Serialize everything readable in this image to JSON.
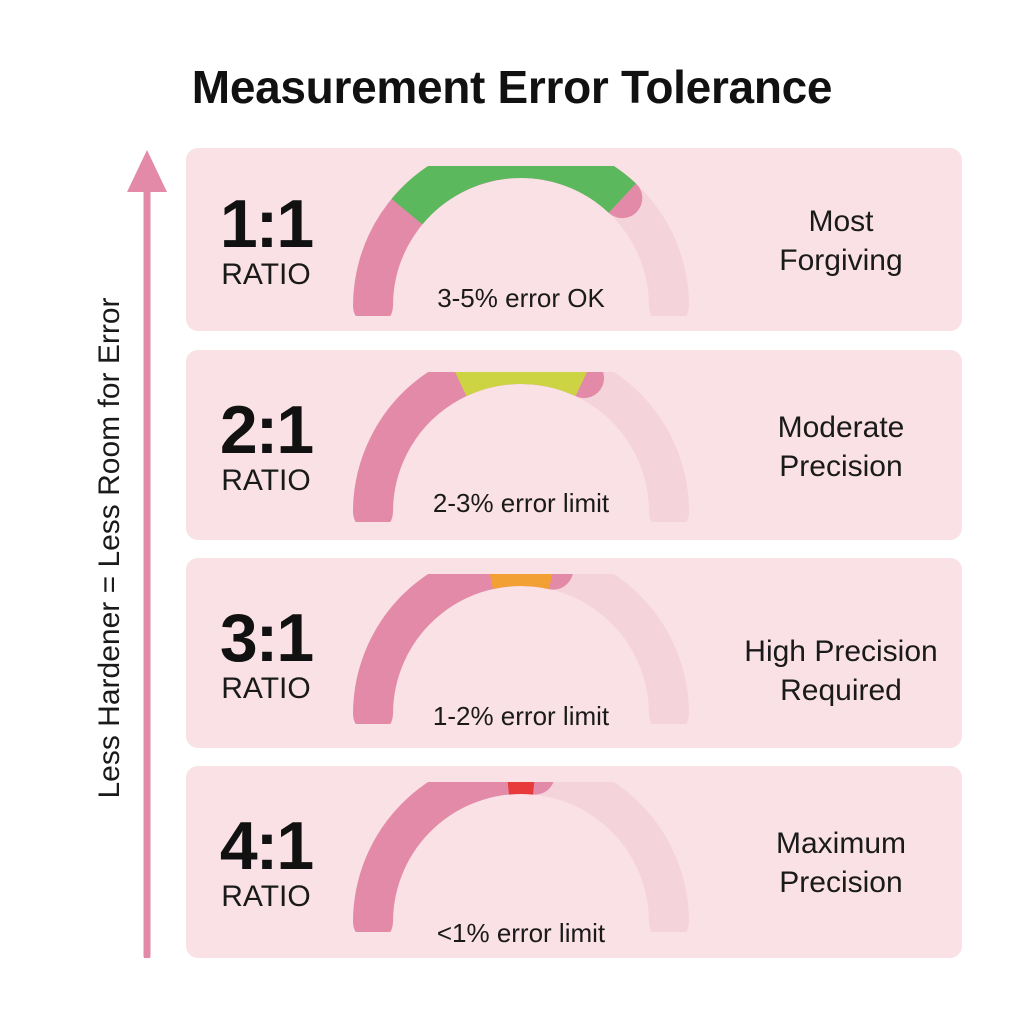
{
  "title": "Measurement Error Tolerance",
  "axis_label": "Less Hardener = Less Room for Error",
  "colors": {
    "card_bg": "#f9e1e5",
    "gauge_used": "#e38aa8",
    "gauge_remaining": "#f4d3da",
    "arrow": "#e38aa8"
  },
  "rows": [
    {
      "ratio": "1:1",
      "ratio_word": "RATIO",
      "tolerance_label": "3-5% error OK",
      "description_line1": "Most",
      "description_line2": "Forgiving",
      "zone_color": "#5cb85c",
      "zone_start_fraction": 0.22,
      "zone_end_fraction": 0.74
    },
    {
      "ratio": "2:1",
      "ratio_word": "RATIO",
      "tolerance_label": "2-3% error limit",
      "description_line1": "Moderate",
      "description_line2": "Precision",
      "zone_color": "#cdd444",
      "zone_start_fraction": 0.36,
      "zone_end_fraction": 0.64
    },
    {
      "ratio": "3:1",
      "ratio_word": "RATIO",
      "tolerance_label": "1-2% error limit",
      "description_line1": "High Precision",
      "description_line2": "Required",
      "zone_color": "#f2a033",
      "zone_start_fraction": 0.43,
      "zone_end_fraction": 0.57
    },
    {
      "ratio": "4:1",
      "ratio_word": "RATIO",
      "tolerance_label": "<1% error limit",
      "description_line1": "Maximum",
      "description_line2": "Precision",
      "zone_color": "#e83a3a",
      "zone_start_fraction": 0.47,
      "zone_end_fraction": 0.53
    }
  ]
}
